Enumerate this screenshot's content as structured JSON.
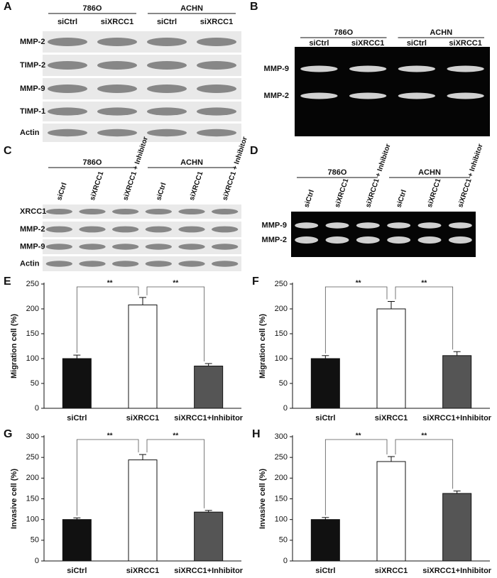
{
  "blots": [
    {
      "panel": "A",
      "groups": [
        {
          "label": "786O",
          "lanes": [
            "siCtrl",
            "siXRCC1"
          ]
        },
        {
          "label": "ACHN",
          "lanes": [
            "siCtrl",
            "siXRCC1"
          ]
        }
      ],
      "rows": [
        "MMP-2",
        "TIMP-2",
        "MMP-9",
        "TIMP-1",
        "Actin"
      ]
    },
    {
      "panel": "B",
      "groups": [
        {
          "label": "786O",
          "lanes": [
            "siCtrl",
            "siXRCC1"
          ]
        },
        {
          "label": "ACHN",
          "lanes": [
            "siCtrl",
            "siXRCC1"
          ]
        }
      ],
      "rows": [
        "MMP-9",
        "MMP-2"
      ]
    },
    {
      "panel": "C",
      "groups": [
        {
          "label": "786O",
          "lanes": [
            "siCtrl",
            "siXRCC1",
            "siXRCC1 + Inhibitor"
          ]
        },
        {
          "label": "ACHN",
          "lanes": [
            "siCtrl",
            "siXRCC1",
            "siXRCC1 + Inhibitor"
          ]
        }
      ],
      "rows": [
        "XRCC1",
        "MMP-2",
        "MMP-9",
        "Actin"
      ]
    },
    {
      "panel": "D",
      "groups": [
        {
          "label": "786O",
          "lanes": [
            "siCtrl",
            "siXRCC1",
            "siXRCC1 + Inhibitor"
          ]
        },
        {
          "label": "ACHN",
          "lanes": [
            "siCtrl",
            "siXRCC1",
            "siXRCC1 + Inhibitor"
          ]
        }
      ],
      "rows": [
        "MMP-9",
        "MMP-2"
      ]
    }
  ],
  "chart_data": [
    {
      "panel": "E",
      "type": "bar",
      "ylabel": "Migration cell (%)",
      "categories": [
        "siCtrl",
        "siXRCC1",
        "siXRCC1+Inhibitor"
      ],
      "values": [
        100,
        208,
        85
      ],
      "errors": [
        7,
        15,
        5
      ],
      "colors": [
        "#111111",
        "#ffffff",
        "#555555"
      ],
      "ylim": [
        0,
        250
      ],
      "yticks": [
        0,
        50,
        100,
        150,
        200,
        250
      ],
      "significance": [
        "**",
        "**"
      ]
    },
    {
      "panel": "F",
      "type": "bar",
      "ylabel": "Migration cell (%)",
      "categories": [
        "siCtrl",
        "siXRCC1",
        "siXRCC1+Inhibitor"
      ],
      "values": [
        100,
        200,
        106
      ],
      "errors": [
        6,
        15,
        8
      ],
      "colors": [
        "#111111",
        "#ffffff",
        "#555555"
      ],
      "ylim": [
        0,
        250
      ],
      "yticks": [
        0,
        50,
        100,
        150,
        200,
        250
      ],
      "significance": [
        "**",
        "**"
      ]
    },
    {
      "panel": "G",
      "type": "bar",
      "ylabel": "Invasive cell (%)",
      "categories": [
        "siCtrl",
        "siXRCC1",
        "siXRCC1+Inhibitor"
      ],
      "values": [
        100,
        244,
        118
      ],
      "errors": [
        4,
        13,
        4
      ],
      "colors": [
        "#111111",
        "#ffffff",
        "#555555"
      ],
      "ylim": [
        0,
        300
      ],
      "yticks": [
        0,
        50,
        100,
        150,
        200,
        250,
        300
      ],
      "significance": [
        "**",
        "**"
      ]
    },
    {
      "panel": "H",
      "type": "bar",
      "ylabel": "Invasive cell (%)",
      "categories": [
        "siCtrl",
        "siXRCC1",
        "siXRCC1+Inhibitor"
      ],
      "values": [
        100,
        240,
        163
      ],
      "errors": [
        5,
        12,
        6
      ],
      "colors": [
        "#111111",
        "#ffffff",
        "#555555"
      ],
      "ylim": [
        0,
        300
      ],
      "yticks": [
        0,
        50,
        100,
        150,
        200,
        250,
        300
      ],
      "significance": [
        "**",
        "**"
      ]
    }
  ]
}
